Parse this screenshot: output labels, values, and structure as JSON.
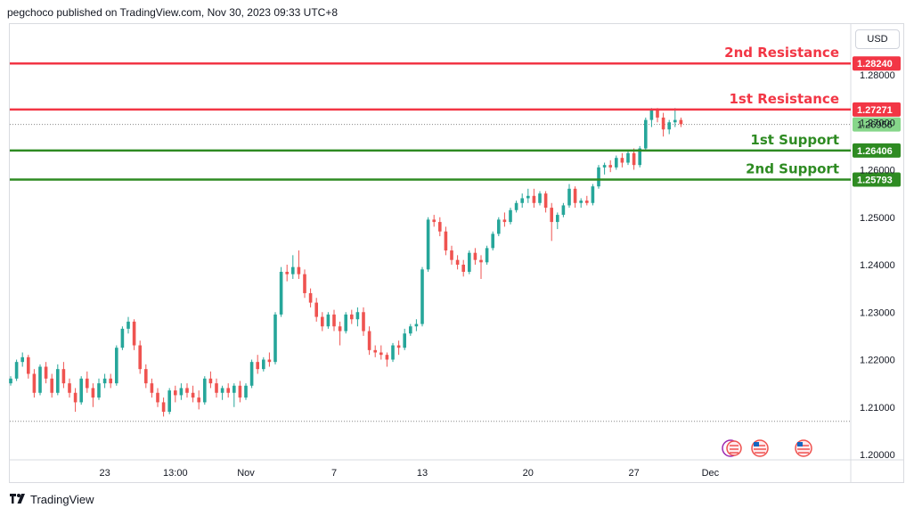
{
  "header": {
    "publisher_text": "pegchoco published on TradingView.com, Nov 30, 2023 09:33 UTC+8"
  },
  "toolbar": {
    "currency": "USD"
  },
  "brand": {
    "name": "TradingView"
  },
  "colors": {
    "up": "#26a69a",
    "down": "#ef5350",
    "resistance": "#f23645",
    "support": "#2e8b22",
    "last": "#86d68a"
  },
  "chart_data": {
    "type": "candlestick",
    "y_axis": {
      "ylim": [
        1.1975,
        1.2885
      ],
      "ticks": [
        "1.20000",
        "1.21000",
        "1.22000",
        "1.23000",
        "1.24000",
        "1.25000",
        "1.26000",
        "1.27000",
        "1.28000"
      ]
    },
    "x_axis": {
      "ticks": [
        {
          "label": "23",
          "bar": 16
        },
        {
          "label": "13:00",
          "bar": 28
        },
        {
          "label": "Nov",
          "bar": 40
        },
        {
          "label": "7",
          "bar": 55
        },
        {
          "label": "13",
          "bar": 70
        },
        {
          "label": "20",
          "bar": 88
        },
        {
          "label": "27",
          "bar": 106
        },
        {
          "label": "Dec",
          "bar": 119
        }
      ]
    },
    "levels": [
      {
        "name": "2nd Resistance",
        "value": 1.2824,
        "value_label": "1.28240",
        "kind": "resistance"
      },
      {
        "name": "1st Resistance",
        "value": 1.27271,
        "value_label": "1.27271",
        "kind": "resistance"
      },
      {
        "name": "1st Support",
        "value": 1.26406,
        "value_label": "1.26406",
        "kind": "support"
      },
      {
        "name": "2nd Support",
        "value": 1.25793,
        "value_label": "1.25793",
        "kind": "support"
      }
    ],
    "last_price": {
      "value": 1.26956,
      "label": "1.26956"
    },
    "dotted_low": 1.207,
    "candles": [
      [
        1.215,
        1.2165,
        1.2145,
        1.216
      ],
      [
        1.216,
        1.22,
        1.2155,
        1.2195
      ],
      [
        1.2195,
        1.2215,
        1.2185,
        1.2205
      ],
      [
        1.2205,
        1.221,
        1.216,
        1.217
      ],
      [
        1.217,
        1.218,
        1.212,
        1.213
      ],
      [
        1.213,
        1.219,
        1.2125,
        1.2185
      ],
      [
        1.2185,
        1.2195,
        1.215,
        1.216
      ],
      [
        1.216,
        1.217,
        1.212,
        1.213
      ],
      [
        1.213,
        1.219,
        1.2125,
        1.218
      ],
      [
        1.218,
        1.2195,
        1.214,
        1.215
      ],
      [
        1.215,
        1.216,
        1.212,
        1.213
      ],
      [
        1.213,
        1.214,
        1.209,
        1.211
      ],
      [
        1.211,
        1.2165,
        1.2105,
        1.216
      ],
      [
        1.216,
        1.2175,
        1.213,
        1.214
      ],
      [
        1.214,
        1.215,
        1.21,
        1.212
      ],
      [
        1.212,
        1.216,
        1.2115,
        1.215
      ],
      [
        1.215,
        1.217,
        1.214,
        1.216
      ],
      [
        1.216,
        1.217,
        1.214,
        1.215
      ],
      [
        1.215,
        1.223,
        1.2145,
        1.2225
      ],
      [
        1.2225,
        1.227,
        1.222,
        1.2265
      ],
      [
        1.2265,
        1.229,
        1.2255,
        1.228
      ],
      [
        1.228,
        1.2285,
        1.222,
        1.223
      ],
      [
        1.223,
        1.224,
        1.217,
        1.218
      ],
      [
        1.218,
        1.219,
        1.214,
        1.215
      ],
      [
        1.215,
        1.216,
        1.212,
        1.213
      ],
      [
        1.213,
        1.214,
        1.21,
        1.211
      ],
      [
        1.211,
        1.212,
        1.208,
        1.209
      ],
      [
        1.209,
        1.214,
        1.2085,
        1.2135
      ],
      [
        1.2135,
        1.2145,
        1.211,
        1.2125
      ],
      [
        1.2125,
        1.215,
        1.2115,
        1.214
      ],
      [
        1.214,
        1.215,
        1.212,
        1.213
      ],
      [
        1.213,
        1.2145,
        1.211,
        1.212
      ],
      [
        1.212,
        1.2135,
        1.2095,
        1.211
      ],
      [
        1.211,
        1.2165,
        1.2105,
        1.216
      ],
      [
        1.216,
        1.2175,
        1.214,
        1.215
      ],
      [
        1.215,
        1.216,
        1.212,
        1.213
      ],
      [
        1.213,
        1.2145,
        1.2115,
        1.214
      ],
      [
        1.214,
        1.215,
        1.212,
        1.213
      ],
      [
        1.213,
        1.215,
        1.21,
        1.2145
      ],
      [
        1.2145,
        1.2155,
        1.211,
        1.212
      ],
      [
        1.212,
        1.215,
        1.2115,
        1.2145
      ],
      [
        1.2145,
        1.22,
        1.214,
        1.2195
      ],
      [
        1.2195,
        1.221,
        1.217,
        1.218
      ],
      [
        1.218,
        1.2205,
        1.2175,
        1.22
      ],
      [
        1.22,
        1.2215,
        1.2185,
        1.2195
      ],
      [
        1.2195,
        1.23,
        1.219,
        1.2295
      ],
      [
        1.2295,
        1.2395,
        1.229,
        1.2385
      ],
      [
        1.2385,
        1.24,
        1.2365,
        1.238
      ],
      [
        1.238,
        1.242,
        1.237,
        1.2395
      ],
      [
        1.2395,
        1.243,
        1.237,
        1.238
      ],
      [
        1.238,
        1.239,
        1.233,
        1.234
      ],
      [
        1.234,
        1.235,
        1.231,
        1.232
      ],
      [
        1.232,
        1.233,
        1.228,
        1.229
      ],
      [
        1.229,
        1.23,
        1.226,
        1.227
      ],
      [
        1.227,
        1.23,
        1.2265,
        1.2295
      ],
      [
        1.2295,
        1.2305,
        1.226,
        1.227
      ],
      [
        1.227,
        1.228,
        1.223,
        1.226
      ],
      [
        1.226,
        1.23,
        1.2255,
        1.2295
      ],
      [
        1.2295,
        1.2305,
        1.2275,
        1.2285
      ],
      [
        1.2285,
        1.231,
        1.227,
        1.23
      ],
      [
        1.23,
        1.231,
        1.225,
        1.226
      ],
      [
        1.226,
        1.227,
        1.221,
        1.222
      ],
      [
        1.222,
        1.223,
        1.2205,
        1.2215
      ],
      [
        1.2215,
        1.223,
        1.22,
        1.221
      ],
      [
        1.221,
        1.2215,
        1.2185,
        1.22
      ],
      [
        1.22,
        1.2235,
        1.2195,
        1.223
      ],
      [
        1.223,
        1.224,
        1.221,
        1.2225
      ],
      [
        1.2225,
        1.2265,
        1.222,
        1.2255
      ],
      [
        1.2255,
        1.2275,
        1.225,
        1.227
      ],
      [
        1.227,
        1.2285,
        1.226,
        1.2275
      ],
      [
        1.2275,
        1.2395,
        1.227,
        1.239
      ],
      [
        1.239,
        1.25,
        1.2385,
        1.2495
      ],
      [
        1.2495,
        1.2505,
        1.248,
        1.249
      ],
      [
        1.249,
        1.25,
        1.246,
        1.247
      ],
      [
        1.247,
        1.248,
        1.242,
        1.243
      ],
      [
        1.243,
        1.244,
        1.24,
        1.241
      ],
      [
        1.241,
        1.242,
        1.239,
        1.24
      ],
      [
        1.24,
        1.241,
        1.2375,
        1.2385
      ],
      [
        1.2385,
        1.243,
        1.238,
        1.2425
      ],
      [
        1.2425,
        1.2435,
        1.24,
        1.241
      ],
      [
        1.241,
        1.242,
        1.237,
        1.2405
      ],
      [
        1.2405,
        1.244,
        1.24,
        1.2435
      ],
      [
        1.2435,
        1.247,
        1.243,
        1.2465
      ],
      [
        1.2465,
        1.25,
        1.246,
        1.2495
      ],
      [
        1.2495,
        1.251,
        1.248,
        1.249
      ],
      [
        1.249,
        1.252,
        1.2485,
        1.2515
      ],
      [
        1.2515,
        1.2535,
        1.251,
        1.253
      ],
      [
        1.253,
        1.255,
        1.252,
        1.254
      ],
      [
        1.254,
        1.256,
        1.253,
        1.2545
      ],
      [
        1.2545,
        1.256,
        1.252,
        1.253
      ],
      [
        1.253,
        1.2555,
        1.2525,
        1.255
      ],
      [
        1.255,
        1.2555,
        1.251,
        1.252
      ],
      [
        1.252,
        1.253,
        1.245,
        1.249
      ],
      [
        1.249,
        1.251,
        1.2475,
        1.2505
      ],
      [
        1.2505,
        1.253,
        1.25,
        1.2525
      ],
      [
        1.2525,
        1.257,
        1.252,
        1.256
      ],
      [
        1.256,
        1.2565,
        1.252,
        1.253
      ],
      [
        1.253,
        1.254,
        1.252,
        1.2535
      ],
      [
        1.2535,
        1.2545,
        1.2525,
        1.253
      ],
      [
        1.253,
        1.257,
        1.2525,
        1.2565
      ],
      [
        1.2565,
        1.261,
        1.256,
        1.2605
      ],
      [
        1.2605,
        1.2615,
        1.259,
        1.261
      ],
      [
        1.261,
        1.262,
        1.2595,
        1.2605
      ],
      [
        1.2605,
        1.263,
        1.26,
        1.2625
      ],
      [
        1.2625,
        1.2635,
        1.2605,
        1.2615
      ],
      [
        1.2615,
        1.264,
        1.261,
        1.2635
      ],
      [
        1.2635,
        1.2645,
        1.26,
        1.261
      ],
      [
        1.261,
        1.265,
        1.2605,
        1.2645
      ],
      [
        1.2645,
        1.271,
        1.264,
        1.2705
      ],
      [
        1.2705,
        1.273,
        1.269,
        1.2725
      ],
      [
        1.2725,
        1.273,
        1.27,
        1.271
      ],
      [
        1.271,
        1.272,
        1.267,
        1.2685
      ],
      [
        1.2685,
        1.2705,
        1.2675,
        1.27
      ],
      [
        1.27,
        1.273,
        1.269,
        1.2705
      ],
      [
        1.2705,
        1.271,
        1.269,
        1.2696
      ]
    ]
  }
}
